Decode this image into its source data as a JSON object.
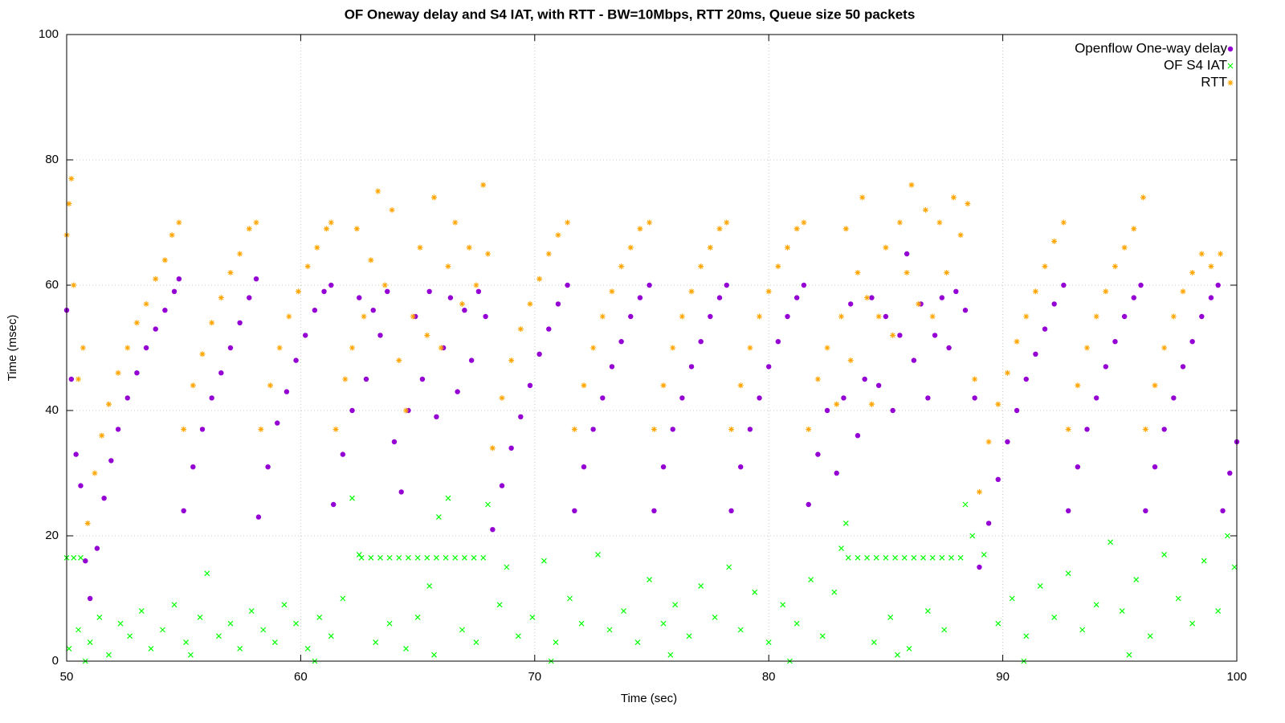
{
  "chart_data": {
    "type": "scatter",
    "title": "OF Oneway delay and S4 IAT, with RTT - BW=10Mbps, RTT 20ms, Queue size 50 packets",
    "x_label": "Time (sec)",
    "y_label": "Time (msec)",
    "xlim": [
      50,
      100
    ],
    "xticks": [
      50,
      60,
      70,
      80,
      90,
      100
    ],
    "ylim": [
      0,
      100
    ],
    "yticks": [
      0,
      20,
      40,
      60,
      80,
      100
    ],
    "grid": true,
    "legend": "top right",
    "series": [
      {
        "name": "Openflow One-way delay",
        "color": "#9400d3",
        "marker": "circle",
        "x": [
          50.0,
          50.2,
          50.4,
          50.6,
          50.8,
          51.0,
          51.3,
          51.6,
          51.9,
          52.2,
          52.6,
          53.0,
          53.4,
          53.8,
          54.2,
          54.6,
          54.8,
          55.0,
          55.4,
          55.8,
          56.2,
          56.6,
          57.0,
          57.4,
          57.8,
          58.1,
          58.2,
          58.6,
          59.0,
          59.4,
          59.8,
          60.2,
          60.6,
          61.0,
          61.3,
          61.4,
          61.8,
          62.2,
          62.5,
          62.8,
          63.1,
          63.4,
          63.7,
          64.0,
          64.3,
          64.6,
          64.9,
          65.2,
          65.5,
          65.8,
          66.1,
          66.4,
          66.7,
          67.0,
          67.3,
          67.6,
          67.9,
          68.2,
          68.6,
          69.0,
          69.4,
          69.8,
          70.2,
          70.6,
          71.0,
          71.4,
          71.7,
          72.1,
          72.5,
          72.9,
          73.3,
          73.7,
          74.1,
          74.5,
          74.9,
          75.1,
          75.5,
          75.9,
          76.3,
          76.7,
          77.1,
          77.5,
          77.9,
          78.2,
          78.4,
          78.8,
          79.2,
          79.6,
          80.0,
          80.4,
          80.8,
          81.2,
          81.5,
          81.7,
          82.1,
          82.5,
          82.9,
          83.2,
          83.5,
          83.8,
          84.1,
          84.4,
          84.7,
          85.0,
          85.3,
          85.6,
          85.9,
          86.2,
          86.5,
          86.8,
          87.1,
          87.4,
          87.7,
          88.0,
          88.4,
          88.8,
          89.0,
          89.4,
          89.8,
          90.2,
          90.6,
          91.0,
          91.4,
          91.8,
          92.2,
          92.6,
          92.8,
          93.2,
          93.6,
          94.0,
          94.4,
          94.8,
          95.2,
          95.6,
          95.9,
          96.1,
          96.5,
          96.9,
          97.3,
          97.7,
          98.1,
          98.5,
          98.9,
          99.2,
          99.4,
          99.7,
          100.0
        ],
        "y": [
          56,
          45,
          33,
          28,
          16,
          10,
          18,
          26,
          32,
          37,
          42,
          46,
          50,
          53,
          56,
          59,
          61,
          24,
          31,
          37,
          42,
          46,
          50,
          54,
          58,
          61,
          23,
          31,
          38,
          43,
          48,
          52,
          56,
          59,
          60,
          25,
          33,
          40,
          58,
          45,
          56,
          52,
          59,
          35,
          27,
          40,
          55,
          45,
          59,
          39,
          50,
          58,
          43,
          56,
          48,
          59,
          55,
          21,
          28,
          34,
          39,
          44,
          49,
          53,
          57,
          60,
          24,
          31,
          37,
          42,
          47,
          51,
          55,
          58,
          60,
          24,
          31,
          37,
          42,
          47,
          51,
          55,
          58,
          60,
          24,
          31,
          37,
          42,
          47,
          51,
          55,
          58,
          60,
          25,
          33,
          40,
          30,
          42,
          57,
          36,
          45,
          58,
          44,
          55,
          40,
          52,
          65,
          48,
          57,
          42,
          52,
          58,
          50,
          59,
          56,
          42,
          15,
          22,
          29,
          35,
          40,
          45,
          49,
          53,
          57,
          60,
          24,
          31,
          37,
          42,
          47,
          51,
          55,
          58,
          60,
          24,
          31,
          37,
          42,
          47,
          51,
          55,
          58,
          60,
          24,
          30,
          35
        ]
      },
      {
        "name": "OF S4 IAT",
        "color": "#00ff00",
        "marker": "cross",
        "x": [
          50.0,
          50.3,
          50.6,
          62.6,
          63.0,
          63.4,
          63.8,
          64.2,
          64.6,
          65.0,
          65.4,
          65.8,
          66.2,
          66.6,
          67.0,
          67.4,
          67.8,
          83.4,
          83.8,
          84.2,
          84.6,
          85.0,
          85.4,
          85.8,
          86.2,
          86.6,
          87.0,
          87.4,
          87.8,
          88.2,
          50.1,
          50.5,
          51.0,
          51.4,
          51.8,
          52.3,
          52.7,
          53.2,
          53.6,
          54.1,
          54.6,
          55.1,
          55.7,
          56.0,
          56.5,
          57.0,
          57.4,
          57.9,
          58.4,
          58.9,
          59.3,
          59.8,
          60.3,
          60.8,
          61.3,
          61.8,
          62.2,
          62.5,
          63.2,
          63.8,
          64.5,
          65.0,
          65.5,
          65.9,
          66.3,
          66.9,
          67.5,
          68.0,
          68.5,
          68.8,
          69.3,
          69.9,
          70.4,
          70.9,
          71.5,
          72.0,
          72.7,
          73.2,
          73.8,
          74.4,
          74.9,
          75.5,
          76.0,
          76.6,
          77.1,
          77.7,
          78.3,
          78.8,
          79.4,
          80.0,
          80.6,
          81.2,
          81.8,
          82.3,
          82.8,
          83.1,
          83.3,
          84.5,
          85.2,
          86.0,
          86.8,
          87.5,
          88.4,
          88.7,
          89.2,
          89.8,
          90.4,
          91.0,
          91.6,
          92.2,
          92.8,
          93.4,
          94.0,
          94.6,
          95.1,
          95.7,
          96.3,
          96.9,
          97.5,
          98.1,
          98.6,
          99.2,
          99.6,
          99.9,
          50.8,
          55.3,
          60.6,
          65.7,
          70.7,
          75.8,
          80.9,
          85.5,
          90.9,
          95.4
        ],
        "y": [
          16.5,
          16.5,
          16.5,
          16.5,
          16.5,
          16.5,
          16.5,
          16.5,
          16.5,
          16.5,
          16.5,
          16.5,
          16.5,
          16.5,
          16.5,
          16.5,
          16.5,
          16.5,
          16.5,
          16.5,
          16.5,
          16.5,
          16.5,
          16.5,
          16.5,
          16.5,
          16.5,
          16.5,
          16.5,
          16.5,
          2,
          5,
          3,
          7,
          1,
          6,
          4,
          8,
          2,
          5,
          9,
          3,
          7,
          14,
          4,
          6,
          2,
          8,
          5,
          3,
          9,
          6,
          2,
          7,
          4,
          10,
          26,
          17,
          3,
          6,
          2,
          7,
          12,
          23,
          26,
          5,
          3,
          25,
          9,
          15,
          4,
          7,
          16,
          3,
          10,
          6,
          17,
          5,
          8,
          3,
          13,
          6,
          9,
          4,
          12,
          7,
          15,
          5,
          11,
          3,
          9,
          6,
          13,
          4,
          11,
          18,
          22,
          3,
          7,
          2,
          8,
          5,
          25,
          20,
          17,
          6,
          10,
          4,
          12,
          7,
          14,
          5,
          9,
          19,
          8,
          13,
          4,
          17,
          10,
          6,
          16,
          8,
          20,
          15,
          0,
          1,
          0,
          1,
          0,
          1,
          0,
          1,
          0,
          1
        ]
      },
      {
        "name": "RTT",
        "color": "#ffa500",
        "marker": "star",
        "x": [
          50.0,
          50.1,
          50.2,
          50.3,
          50.5,
          50.7,
          50.9,
          51.2,
          51.5,
          51.8,
          52.2,
          52.6,
          53.0,
          53.4,
          53.8,
          54.2,
          54.5,
          54.8,
          55.0,
          55.4,
          55.8,
          56.2,
          56.6,
          57.0,
          57.4,
          57.8,
          58.1,
          58.3,
          58.7,
          59.1,
          59.5,
          59.9,
          60.3,
          60.7,
          61.1,
          61.3,
          61.5,
          61.9,
          62.2,
          62.4,
          62.7,
          63.0,
          63.3,
          63.6,
          63.9,
          64.2,
          64.5,
          64.8,
          65.1,
          65.4,
          65.7,
          66.0,
          66.3,
          66.6,
          66.9,
          67.2,
          67.5,
          67.8,
          68.0,
          68.2,
          68.6,
          69.0,
          69.4,
          69.8,
          70.2,
          70.6,
          71.0,
          71.4,
          71.7,
          72.1,
          72.5,
          72.9,
          73.3,
          73.7,
          74.1,
          74.5,
          74.9,
          75.1,
          75.5,
          75.9,
          76.3,
          76.7,
          77.1,
          77.5,
          77.9,
          78.2,
          78.4,
          78.8,
          79.2,
          79.6,
          80.0,
          80.4,
          80.8,
          81.2,
          81.5,
          81.7,
          82.1,
          82.5,
          82.9,
          83.1,
          83.3,
          83.5,
          83.8,
          84.0,
          84.2,
          84.4,
          84.7,
          85.0,
          85.3,
          85.6,
          85.9,
          86.1,
          86.4,
          86.7,
          87.0,
          87.3,
          87.6,
          87.9,
          88.2,
          88.5,
          88.8,
          89.0,
          89.4,
          89.8,
          90.2,
          90.6,
          91.0,
          91.4,
          91.8,
          92.2,
          92.6,
          92.8,
          93.2,
          93.6,
          94.0,
          94.4,
          94.8,
          95.2,
          95.6,
          96.0,
          96.1,
          96.5,
          96.9,
          97.3,
          97.7,
          98.1,
          98.5,
          98.9,
          99.3
        ],
        "y": [
          68,
          73,
          77,
          60,
          45,
          50,
          22,
          30,
          36,
          41,
          46,
          50,
          54,
          57,
          61,
          64,
          68,
          70,
          37,
          44,
          49,
          54,
          58,
          62,
          65,
          69,
          70,
          37,
          44,
          50,
          55,
          59,
          63,
          66,
          69,
          70,
          37,
          45,
          50,
          69,
          55,
          64,
          75,
          60,
          72,
          48,
          40,
          55,
          66,
          52,
          74,
          50,
          63,
          70,
          57,
          66,
          60,
          76,
          65,
          34,
          42,
          48,
          53,
          57,
          61,
          65,
          68,
          70,
          37,
          44,
          50,
          55,
          59,
          63,
          66,
          69,
          70,
          37,
          44,
          50,
          55,
          59,
          63,
          66,
          69,
          70,
          37,
          44,
          50,
          55,
          59,
          63,
          66,
          69,
          70,
          37,
          45,
          50,
          41,
          55,
          69,
          48,
          62,
          74,
          58,
          41,
          55,
          66,
          52,
          70,
          62,
          76,
          57,
          72,
          55,
          70,
          62,
          74,
          68,
          73,
          45,
          27,
          35,
          41,
          46,
          51,
          55,
          59,
          63,
          67,
          70,
          37,
          44,
          50,
          55,
          59,
          63,
          66,
          69,
          74,
          37,
          44,
          50,
          55,
          59,
          62,
          65,
          63,
          65
        ]
      }
    ]
  }
}
